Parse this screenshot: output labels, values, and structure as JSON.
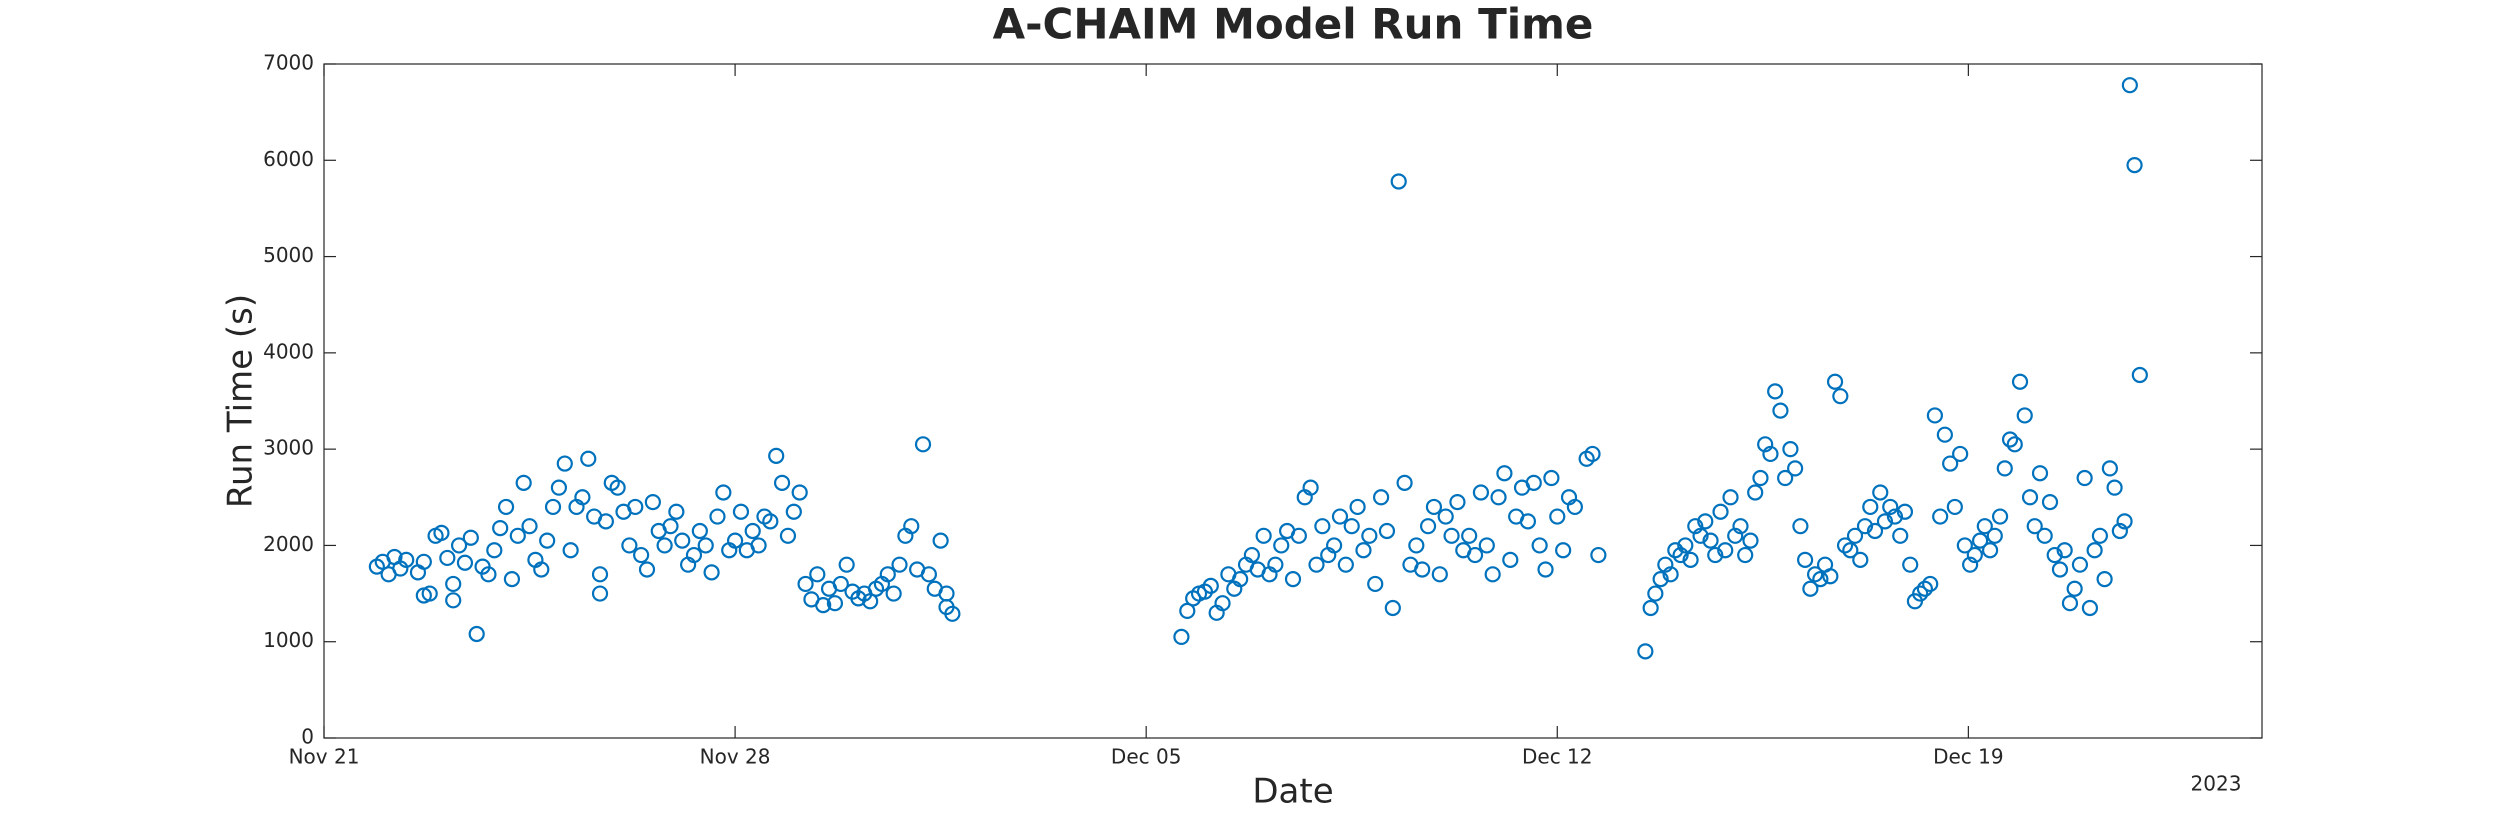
{
  "chart_data": {
    "type": "scatter",
    "title": "A-CHAIM Model Run Time",
    "x_label": "Date",
    "y_label": "Run Time (s)",
    "annotation": "2023",
    "color": "#0072bd",
    "xlim": [
      0,
      33
    ],
    "ylim": [
      0,
      7000
    ],
    "xticks": [
      {
        "value": 0,
        "label": "Nov 21"
      },
      {
        "value": 7,
        "label": "Nov 28"
      },
      {
        "value": 14,
        "label": "Dec 05"
      },
      {
        "value": 21,
        "label": "Dec 12"
      },
      {
        "value": 28,
        "label": "Dec 19"
      }
    ],
    "yticks": [
      0,
      1000,
      2000,
      3000,
      4000,
      5000,
      6000,
      7000
    ],
    "x": [
      0.9,
      1.0,
      1.1,
      1.2,
      1.3,
      1.4,
      1.6,
      1.7,
      1.7,
      1.8,
      1.9,
      2.0,
      2.1,
      2.2,
      2.2,
      2.3,
      2.4,
      2.5,
      2.6,
      2.7,
      2.8,
      2.9,
      3.0,
      3.1,
      3.2,
      3.3,
      3.4,
      3.5,
      3.6,
      3.7,
      3.8,
      3.9,
      4.0,
      4.1,
      4.2,
      4.3,
      4.4,
      4.5,
      4.6,
      4.7,
      4.7,
      4.8,
      4.9,
      5.0,
      5.1,
      5.2,
      5.3,
      5.4,
      5.5,
      5.6,
      5.7,
      5.8,
      5.9,
      6.0,
      6.1,
      6.2,
      6.3,
      6.4,
      6.5,
      6.6,
      6.7,
      6.8,
      6.9,
      7.0,
      7.1,
      7.2,
      7.3,
      7.4,
      7.5,
      7.6,
      7.7,
      7.8,
      7.9,
      8.0,
      8.1,
      8.2,
      8.3,
      8.4,
      8.5,
      8.6,
      8.7,
      8.8,
      8.9,
      9.0,
      9.1,
      9.2,
      9.3,
      9.4,
      9.5,
      9.6,
      9.7,
      9.8,
      9.9,
      10.0,
      10.1,
      10.2,
      10.3,
      10.4,
      10.5,
      10.6,
      10.6,
      10.7,
      14.6,
      14.7,
      14.8,
      14.9,
      15.0,
      15.1,
      15.2,
      15.3,
      15.4,
      15.5,
      15.6,
      15.7,
      15.8,
      15.9,
      16.0,
      16.1,
      16.2,
      16.3,
      16.4,
      16.5,
      16.6,
      16.7,
      16.8,
      16.9,
      17.0,
      17.1,
      17.2,
      17.3,
      17.4,
      17.5,
      17.6,
      17.7,
      17.8,
      17.9,
      18.0,
      18.1,
      18.2,
      18.3,
      18.4,
      18.5,
      18.6,
      18.7,
      18.8,
      18.9,
      19.0,
      19.1,
      19.2,
      19.3,
      19.4,
      19.5,
      19.6,
      19.7,
      19.8,
      19.9,
      20.0,
      20.1,
      20.2,
      20.3,
      20.4,
      20.5,
      20.6,
      20.7,
      20.8,
      20.9,
      21.0,
      21.1,
      21.2,
      21.3,
      21.5,
      21.6,
      21.7,
      22.5,
      22.59,
      22.67,
      22.76,
      22.84,
      22.93,
      23.01,
      23.1,
      23.18,
      23.27,
      23.35,
      23.44,
      23.52,
      23.61,
      23.69,
      23.78,
      23.86,
      23.95,
      24.03,
      24.12,
      24.2,
      24.29,
      24.37,
      24.46,
      24.54,
      24.63,
      24.71,
      24.8,
      24.88,
      24.97,
      25.05,
      25.14,
      25.22,
      25.31,
      25.39,
      25.48,
      25.56,
      25.65,
      25.73,
      25.82,
      25.9,
      25.99,
      26.07,
      26.16,
      26.24,
      26.33,
      26.41,
      26.5,
      26.58,
      26.67,
      26.75,
      26.84,
      26.92,
      27.01,
      27.09,
      27.18,
      27.26,
      27.35,
      27.43,
      27.52,
      27.6,
      27.69,
      27.77,
      27.86,
      27.94,
      28.03,
      28.11,
      28.2,
      28.28,
      28.37,
      28.45,
      28.54,
      28.62,
      28.71,
      28.79,
      28.88,
      28.96,
      29.05,
      29.13,
      29.22,
      29.3,
      29.39,
      29.47,
      29.56,
      29.64,
      29.73,
      29.81,
      29.9,
      29.98,
      30.07,
      30.15,
      30.24,
      30.32,
      30.41,
      30.49,
      30.58,
      30.66,
      30.75,
      30.83,
      30.92
    ],
    "values": [
      1780,
      1830,
      1700,
      1880,
      1760,
      1850,
      1720,
      1830,
      1480,
      1500,
      2100,
      2130,
      1870,
      1600,
      1430,
      2000,
      1820,
      2080,
      1080,
      1780,
      1700,
      1950,
      2180,
      2400,
      1650,
      2100,
      2650,
      2200,
      1850,
      1750,
      2050,
      2400,
      2600,
      2850,
      1950,
      2400,
      2500,
      2900,
      2300,
      1700,
      1500,
      2250,
      2650,
      2600,
      2350,
      2000,
      2400,
      1900,
      1750,
      2450,
      2150,
      2000,
      2200,
      2350,
      2050,
      1800,
      1900,
      2150,
      2000,
      1720,
      2300,
      2550,
      1950,
      2050,
      2350,
      1950,
      2150,
      2000,
      2300,
      2250,
      2930,
      2650,
      2100,
      2350,
      2550,
      1600,
      1440,
      1700,
      1380,
      1550,
      1400,
      1600,
      1800,
      1520,
      1450,
      1500,
      1420,
      1550,
      1600,
      1700,
      1500,
      1800,
      2100,
      2200,
      1750,
      3050,
      1700,
      1550,
      2050,
      1500,
      1360,
      1290,
      1050,
      1320,
      1450,
      1500,
      1520,
      1580,
      1300,
      1400,
      1700,
      1550,
      1650,
      1800,
      1900,
      1750,
      2100,
      1700,
      1800,
      2000,
      2150,
      1650,
      2100,
      2500,
      2600,
      1800,
      2200,
      1900,
      2000,
      2300,
      1800,
      2200,
      2400,
      1950,
      2100,
      1600,
      2500,
      2150,
      1350,
      5780,
      2650,
      1800,
      2000,
      1750,
      2200,
      2400,
      1700,
      2300,
      2100,
      2450,
      1950,
      2100,
      1900,
      2550,
      2000,
      1700,
      2500,
      2750,
      1850,
      2300,
      2600,
      2250,
      2650,
      2000,
      1750,
      2700,
      2300,
      1950,
      2500,
      2400,
      2900,
      2950,
      1900,
      900,
      1350,
      1500,
      1650,
      1800,
      1700,
      1950,
      1900,
      2000,
      1850,
      2200,
      2100,
      2250,
      2050,
      1900,
      2350,
      1950,
      2500,
      2100,
      2200,
      1900,
      2050,
      2550,
      2700,
      3050,
      2950,
      3600,
      3400,
      2700,
      3000,
      2800,
      2200,
      1850,
      1550,
      1700,
      1650,
      1800,
      1680,
      3700,
      3550,
      2000,
      1950,
      2100,
      1850,
      2200,
      2400,
      2150,
      2550,
      2250,
      2400,
      2300,
      2100,
      2350,
      1800,
      1420,
      1500,
      1550,
      1600,
      3350,
      2300,
      3150,
      2850,
      2400,
      2950,
      2000,
      1800,
      1900,
      2050,
      2200,
      1950,
      2100,
      2300,
      2800,
      3100,
      3050,
      3700,
      3350,
      2500,
      2200,
      2750,
      2100,
      2450,
      1900,
      1750,
      1950,
      1400,
      1550,
      1800,
      2700,
      1350,
      1950,
      2100,
      1650,
      2800,
      2600,
      2150,
      2250,
      6780,
      5950,
      3770
    ]
  }
}
